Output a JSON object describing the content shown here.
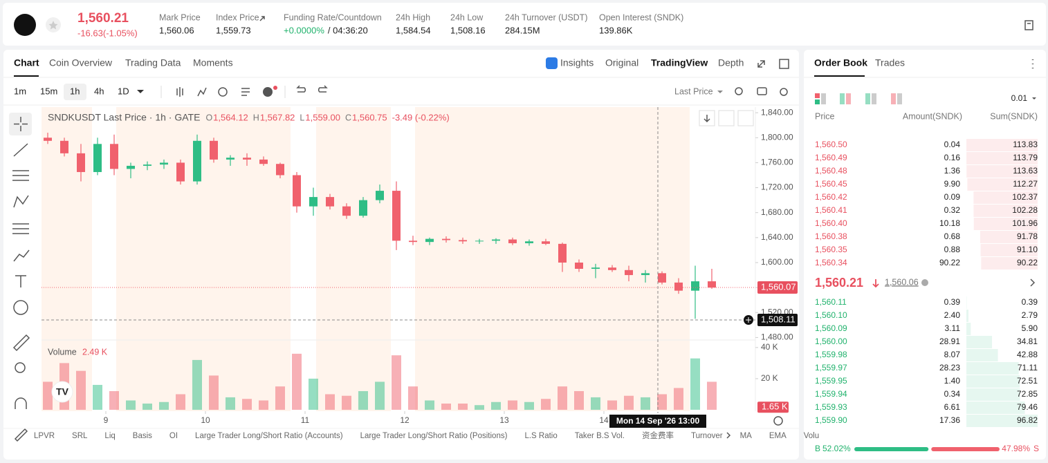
{
  "header": {
    "price": "1,560.21",
    "change": "-16.63(-1.05%)",
    "stats": [
      {
        "label": "Mark Price",
        "value": "1,560.06"
      },
      {
        "label": "Index Price",
        "value": "1,559.73"
      },
      {
        "label": "Funding Rate/Countdown",
        "value": "+0.0000%",
        "value2": "/ 04:36:20"
      },
      {
        "label": "24h High",
        "value": "1,584.54"
      },
      {
        "label": "24h Low",
        "value": "1,508.16"
      },
      {
        "label": "24h Turnover (USDT)",
        "value": "284.15M"
      },
      {
        "label": "Open Interest (SNDK)",
        "value": "139.86K"
      }
    ]
  },
  "tabs": [
    "Chart",
    "Coin Overview",
    "Trading Data",
    "Moments"
  ],
  "view_tabs": [
    "Insights",
    "Original",
    "TradingView",
    "Depth"
  ],
  "timeframes": [
    "1m",
    "15m",
    "1h",
    "4h",
    "1D"
  ],
  "price_source": "Last Price",
  "chart": {
    "type": "candlestick",
    "symbol": "SNDKUSDT Last Price · 1h · GATE",
    "ohlc": [
      {
        "k": "O",
        "v": "1,564.12"
      },
      {
        "k": "H",
        "v": "1,567.82"
      },
      {
        "k": "L",
        "v": "1,559.00"
      },
      {
        "k": "C",
        "v": "1,560.75"
      }
    ],
    "change": "-3.49 (-0.22%)",
    "up_color": "#2ebd85",
    "down_color": "#f0616d",
    "xlim": [
      8.5,
      180.5
    ],
    "xticks": [
      {
        "value": 24,
        "label": "9"
      },
      {
        "value": 48,
        "label": "10"
      },
      {
        "value": 72,
        "label": "11"
      },
      {
        "value": 96,
        "label": "12"
      },
      {
        "value": 120,
        "label": "13"
      },
      {
        "value": 144,
        "label": "14"
      }
    ],
    "ylim": [
      1476,
      1849
    ],
    "yticks": [
      {
        "value": 1840,
        "label": "1,840.00"
      },
      {
        "value": 1800,
        "label": "1,800.00"
      },
      {
        "value": 1760,
        "label": "1,760.00"
      },
      {
        "value": 1720,
        "label": "1,720.00"
      },
      {
        "value": 1680,
        "label": "1,680.00"
      },
      {
        "value": 1640,
        "label": "1,640.00"
      },
      {
        "value": 1600,
        "label": "1,600.00"
      },
      {
        "value": 1560,
        "label": "1,560.00"
      },
      {
        "value": 1520,
        "label": "1,520.00"
      },
      {
        "value": 1480,
        "label": "1,480.00"
      }
    ],
    "x": [
      10,
      14,
      18,
      22,
      26,
      30,
      34,
      38,
      42,
      46,
      50,
      54,
      58,
      62,
      66,
      70,
      74,
      78,
      82,
      86,
      90,
      94,
      98,
      102,
      106,
      110,
      114,
      118,
      122,
      126,
      130,
      134,
      138,
      142,
      146,
      150,
      154,
      158,
      162,
      166,
      170
    ],
    "candles": [
      [
        1800,
        1808,
        1790,
        1795
      ],
      [
        1795,
        1800,
        1770,
        1775
      ],
      [
        1775,
        1790,
        1730,
        1745
      ],
      [
        1745,
        1800,
        1740,
        1790
      ],
      [
        1790,
        1805,
        1740,
        1750
      ],
      [
        1750,
        1760,
        1735,
        1755
      ],
      [
        1755,
        1762,
        1748,
        1757
      ],
      [
        1757,
        1765,
        1750,
        1760
      ],
      [
        1760,
        1765,
        1725,
        1730
      ],
      [
        1730,
        1805,
        1725,
        1795
      ],
      [
        1795,
        1800,
        1760,
        1765
      ],
      [
        1765,
        1772,
        1755,
        1768
      ],
      [
        1768,
        1775,
        1755,
        1765
      ],
      [
        1765,
        1770,
        1755,
        1758
      ],
      [
        1758,
        1760,
        1735,
        1740
      ],
      [
        1740,
        1745,
        1680,
        1690
      ],
      [
        1690,
        1720,
        1675,
        1705
      ],
      [
        1705,
        1710,
        1685,
        1690
      ],
      [
        1690,
        1695,
        1670,
        1675
      ],
      [
        1675,
        1705,
        1672,
        1700
      ],
      [
        1700,
        1725,
        1695,
        1715
      ],
      [
        1715,
        1730,
        1620,
        1635
      ],
      [
        1635,
        1643,
        1628,
        1633
      ],
      [
        1633,
        1640,
        1628,
        1638
      ],
      [
        1638,
        1642,
        1632,
        1636
      ],
      [
        1636,
        1640,
        1630,
        1634
      ],
      [
        1634,
        1638,
        1630,
        1635
      ],
      [
        1635,
        1639,
        1630,
        1637
      ],
      [
        1637,
        1640,
        1628,
        1631
      ],
      [
        1631,
        1637,
        1627,
        1634
      ],
      [
        1634,
        1638,
        1628,
        1630
      ],
      [
        1630,
        1632,
        1585,
        1600
      ],
      [
        1600,
        1605,
        1585,
        1590
      ],
      [
        1590,
        1598,
        1575,
        1592
      ],
      [
        1592,
        1596,
        1585,
        1588
      ],
      [
        1588,
        1595,
        1570,
        1580
      ],
      [
        1580,
        1588,
        1568,
        1583
      ],
      [
        1583,
        1586,
        1565,
        1568
      ],
      [
        1568,
        1575,
        1550,
        1555
      ],
      [
        1555,
        1595,
        1510,
        1570
      ],
      [
        1570,
        1590,
        1558,
        1560
      ]
    ],
    "last_price": {
      "value": 1560.07,
      "label": "1,560.07"
    },
    "crosshair": {
      "x": 157,
      "time": "Mon 14 Sep '26   13:00",
      "price": {
        "value": 1508.11,
        "label": "1,508.11"
      }
    },
    "volume": {
      "title": "Volume",
      "last": "2.49 K",
      "values": [
        18000,
        30000,
        25000,
        16000,
        12000,
        6000,
        4000,
        5000,
        10000,
        32000,
        22000,
        8000,
        7000,
        6000,
        15000,
        36000,
        20000,
        10000,
        9000,
        12000,
        18000,
        35000,
        15000,
        6000,
        4000,
        4000,
        3000,
        5000,
        6000,
        5000,
        7000,
        15000,
        12000,
        8000,
        6000,
        9000,
        8000,
        10000,
        14000,
        33000,
        18000
      ],
      "ylim": [
        0,
        43500
      ],
      "yticks": [
        {
          "value": 20000,
          "label": "20 K"
        },
        {
          "value": 40000,
          "label": "40 K"
        }
      ],
      "last_tag": {
        "value": 1650,
        "label": "1.65 K"
      }
    },
    "indicators": [
      "LPVR",
      "SRL",
      "Liq",
      "Basis",
      "OI",
      "Large Trader Long/Short Ratio (Accounts)",
      "Large Trader Long/Short Ratio (Positions)",
      "L.S Ratio",
      "Taker B.S Vol.",
      "资金费率",
      "Turnover",
      "MA",
      "EMA",
      "Volu"
    ]
  },
  "order_book": {
    "tabs": [
      "Order Book",
      "Trades"
    ],
    "precision": "0.01",
    "columns": [
      "Price",
      "Amount(SNDK)",
      "Sum(SNDK)"
    ],
    "asks": [
      {
        "price": "1,560.50",
        "amount": "0.04",
        "sum": 113.83,
        "sum_label": "113.83"
      },
      {
        "price": "1,560.49",
        "amount": "0.16",
        "sum": 113.79,
        "sum_label": "113.79"
      },
      {
        "price": "1,560.48",
        "amount": "1.36",
        "sum": 113.63,
        "sum_label": "113.63"
      },
      {
        "price": "1,560.45",
        "amount": "9.90",
        "sum": 112.27,
        "sum_label": "112.27"
      },
      {
        "price": "1,560.42",
        "amount": "0.09",
        "sum": 102.37,
        "sum_label": "102.37"
      },
      {
        "price": "1,560.41",
        "amount": "0.32",
        "sum": 102.28,
        "sum_label": "102.28"
      },
      {
        "price": "1,560.40",
        "amount": "10.18",
        "sum": 101.96,
        "sum_label": "101.96"
      },
      {
        "price": "1,560.38",
        "amount": "0.68",
        "sum": 91.78,
        "sum_label": "91.78"
      },
      {
        "price": "1,560.35",
        "amount": "0.88",
        "sum": 91.1,
        "sum_label": "91.10"
      },
      {
        "price": "1,560.34",
        "amount": "90.22",
        "sum": 90.22,
        "sum_label": "90.22"
      }
    ],
    "mid": {
      "price": "1,560.21",
      "mark": "1,560.06"
    },
    "bids": [
      {
        "price": "1,560.11",
        "amount": "0.39",
        "sum": 0.39,
        "sum_label": "0.39"
      },
      {
        "price": "1,560.10",
        "amount": "2.40",
        "sum": 2.79,
        "sum_label": "2.79"
      },
      {
        "price": "1,560.09",
        "amount": "3.11",
        "sum": 5.9,
        "sum_label": "5.90"
      },
      {
        "price": "1,560.00",
        "amount": "28.91",
        "sum": 34.81,
        "sum_label": "34.81"
      },
      {
        "price": "1,559.98",
        "amount": "8.07",
        "sum": 42.88,
        "sum_label": "42.88"
      },
      {
        "price": "1,559.97",
        "amount": "28.23",
        "sum": 71.11,
        "sum_label": "71.11"
      },
      {
        "price": "1,559.95",
        "amount": "1.40",
        "sum": 72.51,
        "sum_label": "72.51"
      },
      {
        "price": "1,559.94",
        "amount": "0.34",
        "sum": 72.85,
        "sum_label": "72.85"
      },
      {
        "price": "1,559.93",
        "amount": "6.61",
        "sum": 79.46,
        "sum_label": "79.46"
      },
      {
        "price": "1,559.90",
        "amount": "17.36",
        "sum": 96.82,
        "sum_label": "96.82"
      }
    ],
    "buy": {
      "letter": "B",
      "value": 52.02,
      "label": "52.02%"
    },
    "sell": {
      "letter": "S",
      "value": 47.98,
      "label": "47.98%"
    }
  }
}
